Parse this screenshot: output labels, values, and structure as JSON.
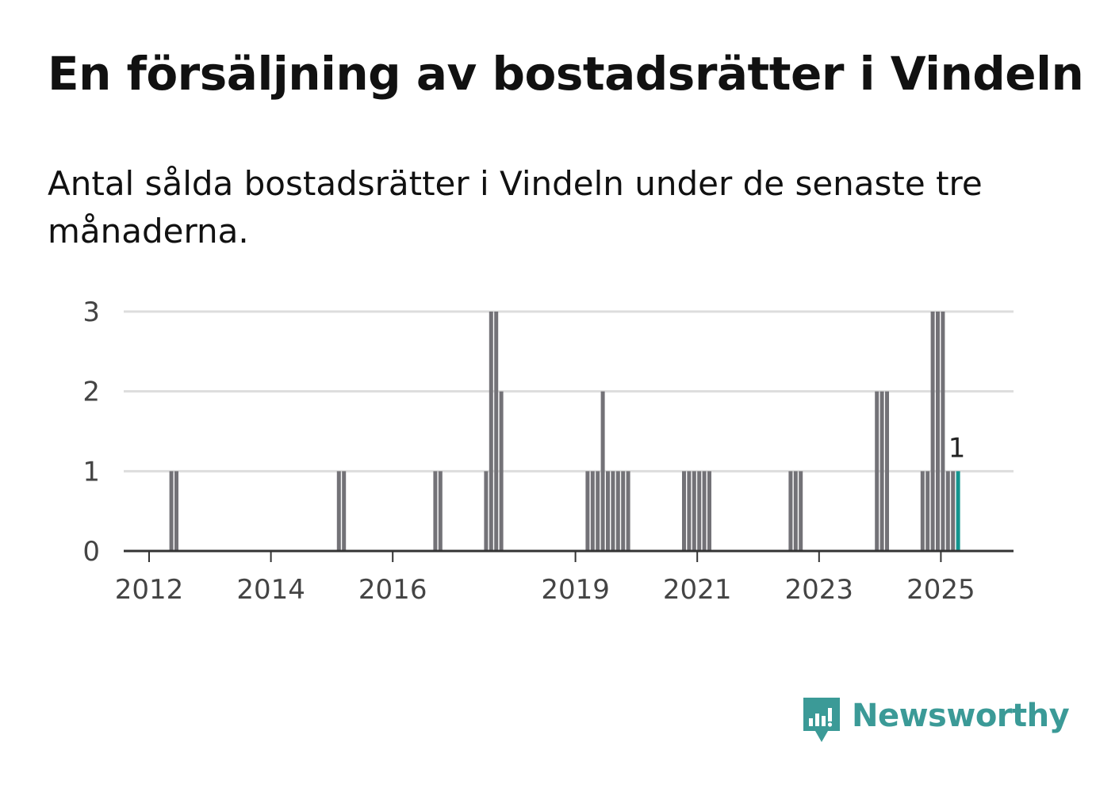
{
  "title": "En försäljning av bostadsrätter i Vindeln",
  "subtitle": "Antal sålda bostadsrätter i Vindeln under de senaste tre månaderna.",
  "brand": {
    "name": "Newsworthy",
    "icon": "newsworthy-chart-icon",
    "color": "#3b9a97"
  },
  "colors": {
    "bar": "#737277",
    "highlight": "#13958f",
    "grid": "#dddddd",
    "axis": "#333333"
  },
  "chart_data": {
    "type": "bar",
    "ylim": [
      0,
      3
    ],
    "yticks": [
      "0",
      "1",
      "2",
      "3"
    ],
    "xticks": [
      "2012",
      "2014",
      "2016",
      "2019",
      "2021",
      "2023",
      "2025"
    ],
    "grid": true,
    "highlight_label": "1",
    "points": [
      {
        "x": "2012-05",
        "y": 1
      },
      {
        "x": "2012-06",
        "y": 1
      },
      {
        "x": "2015-02",
        "y": 1
      },
      {
        "x": "2015-03",
        "y": 1
      },
      {
        "x": "2016-09",
        "y": 1
      },
      {
        "x": "2016-10",
        "y": 1
      },
      {
        "x": "2017-07",
        "y": 1
      },
      {
        "x": "2017-08",
        "y": 3
      },
      {
        "x": "2017-09",
        "y": 3
      },
      {
        "x": "2017-10",
        "y": 2
      },
      {
        "x": "2019-03",
        "y": 1
      },
      {
        "x": "2019-04",
        "y": 1
      },
      {
        "x": "2019-05",
        "y": 1
      },
      {
        "x": "2019-06",
        "y": 2
      },
      {
        "x": "2019-07",
        "y": 1
      },
      {
        "x": "2019-08",
        "y": 1
      },
      {
        "x": "2019-09",
        "y": 1
      },
      {
        "x": "2019-10",
        "y": 1
      },
      {
        "x": "2019-11",
        "y": 1
      },
      {
        "x": "2020-10",
        "y": 1
      },
      {
        "x": "2020-11",
        "y": 1
      },
      {
        "x": "2020-12",
        "y": 1
      },
      {
        "x": "2021-01",
        "y": 1
      },
      {
        "x": "2021-02",
        "y": 1
      },
      {
        "x": "2021-03",
        "y": 1
      },
      {
        "x": "2022-07",
        "y": 1
      },
      {
        "x": "2022-08",
        "y": 1
      },
      {
        "x": "2022-09",
        "y": 1
      },
      {
        "x": "2023-12",
        "y": 2
      },
      {
        "x": "2024-01",
        "y": 2
      },
      {
        "x": "2024-02",
        "y": 2
      },
      {
        "x": "2024-09",
        "y": 1
      },
      {
        "x": "2024-10",
        "y": 1
      },
      {
        "x": "2024-11",
        "y": 3
      },
      {
        "x": "2024-12",
        "y": 3
      },
      {
        "x": "2025-01",
        "y": 3
      },
      {
        "x": "2025-02",
        "y": 1
      },
      {
        "x": "2025-03",
        "y": 1
      },
      {
        "x": "2025-04",
        "y": 1,
        "highlight": true
      }
    ]
  }
}
